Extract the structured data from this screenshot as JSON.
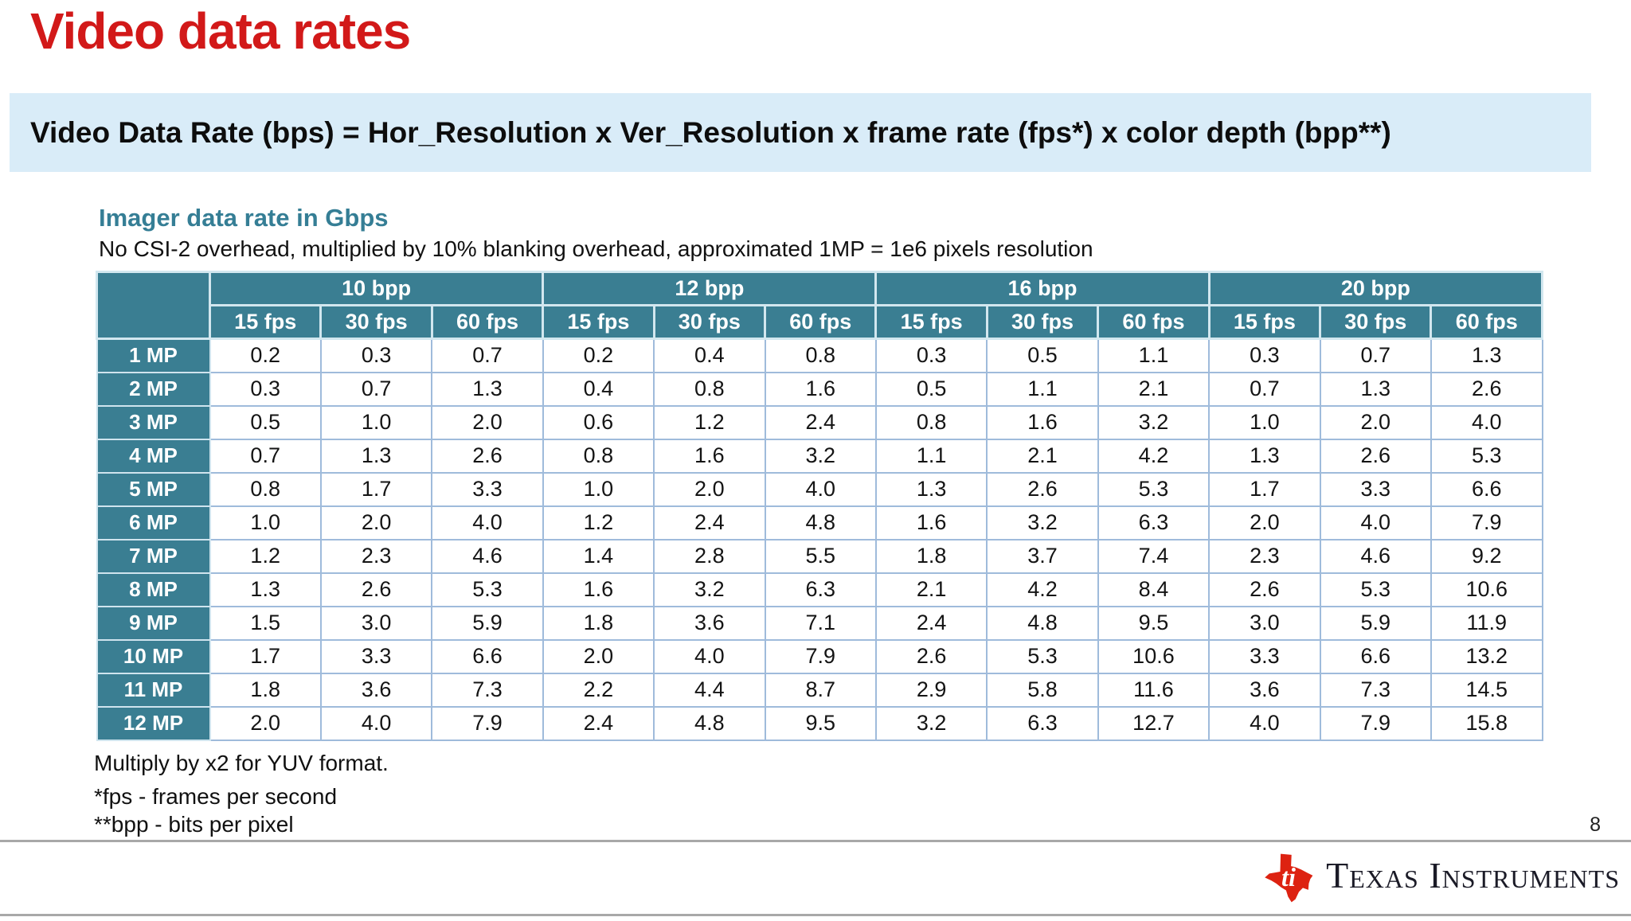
{
  "slide": {
    "title": "Video data rates",
    "formula": "Video Data Rate (bps) = Hor_Resolution x Ver_Resolution x frame rate (fps*) x color depth (bpp**)",
    "page_number": "8"
  },
  "table_section": {
    "heading": "Imager data rate in Gbps",
    "subheading": "No CSI-2 overhead, multiplied by 10% blanking overhead, approximated 1MP = 1e6 pixels resolution"
  },
  "table": {
    "unit": "Gbps",
    "bpp_groups": [
      "10 bpp",
      "12 bpp",
      "16 bpp",
      "20 bpp"
    ],
    "fps_columns": [
      "15 fps",
      "30 fps",
      "60 fps"
    ],
    "row_labels": [
      "1 MP",
      "2 MP",
      "3 MP",
      "4 MP",
      "5 MP",
      "6 MP",
      "7 MP",
      "8 MP",
      "9 MP",
      "10 MP",
      "11 MP",
      "12 MP"
    ],
    "rows": [
      [
        "0.2",
        "0.3",
        "0.7",
        "0.2",
        "0.4",
        "0.8",
        "0.3",
        "0.5",
        "1.1",
        "0.3",
        "0.7",
        "1.3"
      ],
      [
        "0.3",
        "0.7",
        "1.3",
        "0.4",
        "0.8",
        "1.6",
        "0.5",
        "1.1",
        "2.1",
        "0.7",
        "1.3",
        "2.6"
      ],
      [
        "0.5",
        "1.0",
        "2.0",
        "0.6",
        "1.2",
        "2.4",
        "0.8",
        "1.6",
        "3.2",
        "1.0",
        "2.0",
        "4.0"
      ],
      [
        "0.7",
        "1.3",
        "2.6",
        "0.8",
        "1.6",
        "3.2",
        "1.1",
        "2.1",
        "4.2",
        "1.3",
        "2.6",
        "5.3"
      ],
      [
        "0.8",
        "1.7",
        "3.3",
        "1.0",
        "2.0",
        "4.0",
        "1.3",
        "2.6",
        "5.3",
        "1.7",
        "3.3",
        "6.6"
      ],
      [
        "1.0",
        "2.0",
        "4.0",
        "1.2",
        "2.4",
        "4.8",
        "1.6",
        "3.2",
        "6.3",
        "2.0",
        "4.0",
        "7.9"
      ],
      [
        "1.2",
        "2.3",
        "4.6",
        "1.4",
        "2.8",
        "5.5",
        "1.8",
        "3.7",
        "7.4",
        "2.3",
        "4.6",
        "9.2"
      ],
      [
        "1.3",
        "2.6",
        "5.3",
        "1.6",
        "3.2",
        "6.3",
        "2.1",
        "4.2",
        "8.4",
        "2.6",
        "5.3",
        "10.6"
      ],
      [
        "1.5",
        "3.0",
        "5.9",
        "1.8",
        "3.6",
        "7.1",
        "2.4",
        "4.8",
        "9.5",
        "3.0",
        "5.9",
        "11.9"
      ],
      [
        "1.7",
        "3.3",
        "6.6",
        "2.0",
        "4.0",
        "7.9",
        "2.6",
        "5.3",
        "10.6",
        "3.3",
        "6.6",
        "13.2"
      ],
      [
        "1.8",
        "3.6",
        "7.3",
        "2.2",
        "4.4",
        "8.7",
        "2.9",
        "5.8",
        "11.6",
        "3.6",
        "7.3",
        "14.5"
      ],
      [
        "2.0",
        "4.0",
        "7.9",
        "2.4",
        "4.8",
        "9.5",
        "3.2",
        "6.3",
        "12.7",
        "4.0",
        "7.9",
        "15.8"
      ]
    ]
  },
  "notes": [
    "Multiply by x2 for YUV format.",
    "*fps - frames per second",
    "**bpp - bits per pixel"
  ],
  "footer": {
    "brand": "Texas Instruments",
    "logo_monogram": "ti"
  },
  "colors": {
    "title_red": "#d21919",
    "logo_red": "#dd2211",
    "header_teal": "#3a7e92",
    "heading_teal": "#357e95",
    "formula_band_blue": "#d9ecf8",
    "cell_border_blue": "#9fbbdb",
    "footer_rule_gray": "#a8a8a8"
  }
}
